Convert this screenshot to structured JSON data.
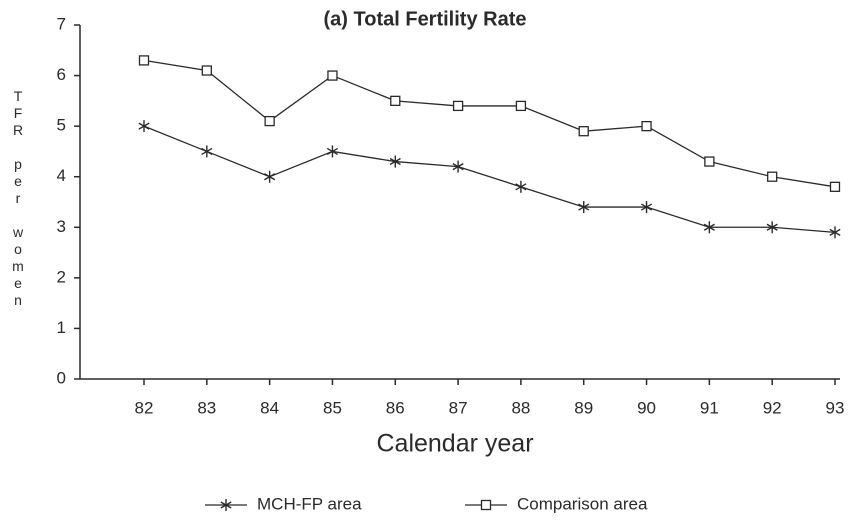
{
  "chart_data": {
    "type": "line",
    "title": "(a) Total Fertility Rate",
    "x_label": "Calendar year",
    "y_label": "TFR per women",
    "categories": [
      "82",
      "83",
      "84",
      "85",
      "86",
      "87",
      "88",
      "89",
      "90",
      "91",
      "92",
      "93"
    ],
    "series": [
      {
        "name": "MCH-FP area",
        "color": "#2a2a2a",
        "marker": "star",
        "values": [
          5.0,
          4.5,
          4.0,
          4.5,
          4.3,
          4.2,
          3.8,
          3.4,
          3.4,
          3.0,
          3.0,
          2.9
        ]
      },
      {
        "name": "Comparison area",
        "color": "#2a2a2a",
        "marker": "square",
        "values": [
          6.3,
          6.1,
          5.1,
          6.0,
          5.5,
          5.4,
          5.4,
          4.9,
          5.0,
          4.3,
          4.0,
          3.8
        ]
      }
    ],
    "ylim": [
      0,
      7
    ],
    "yticks": [
      0,
      1,
      2,
      3,
      4,
      5,
      6,
      7
    ],
    "grid": false,
    "legend": "bottom"
  }
}
